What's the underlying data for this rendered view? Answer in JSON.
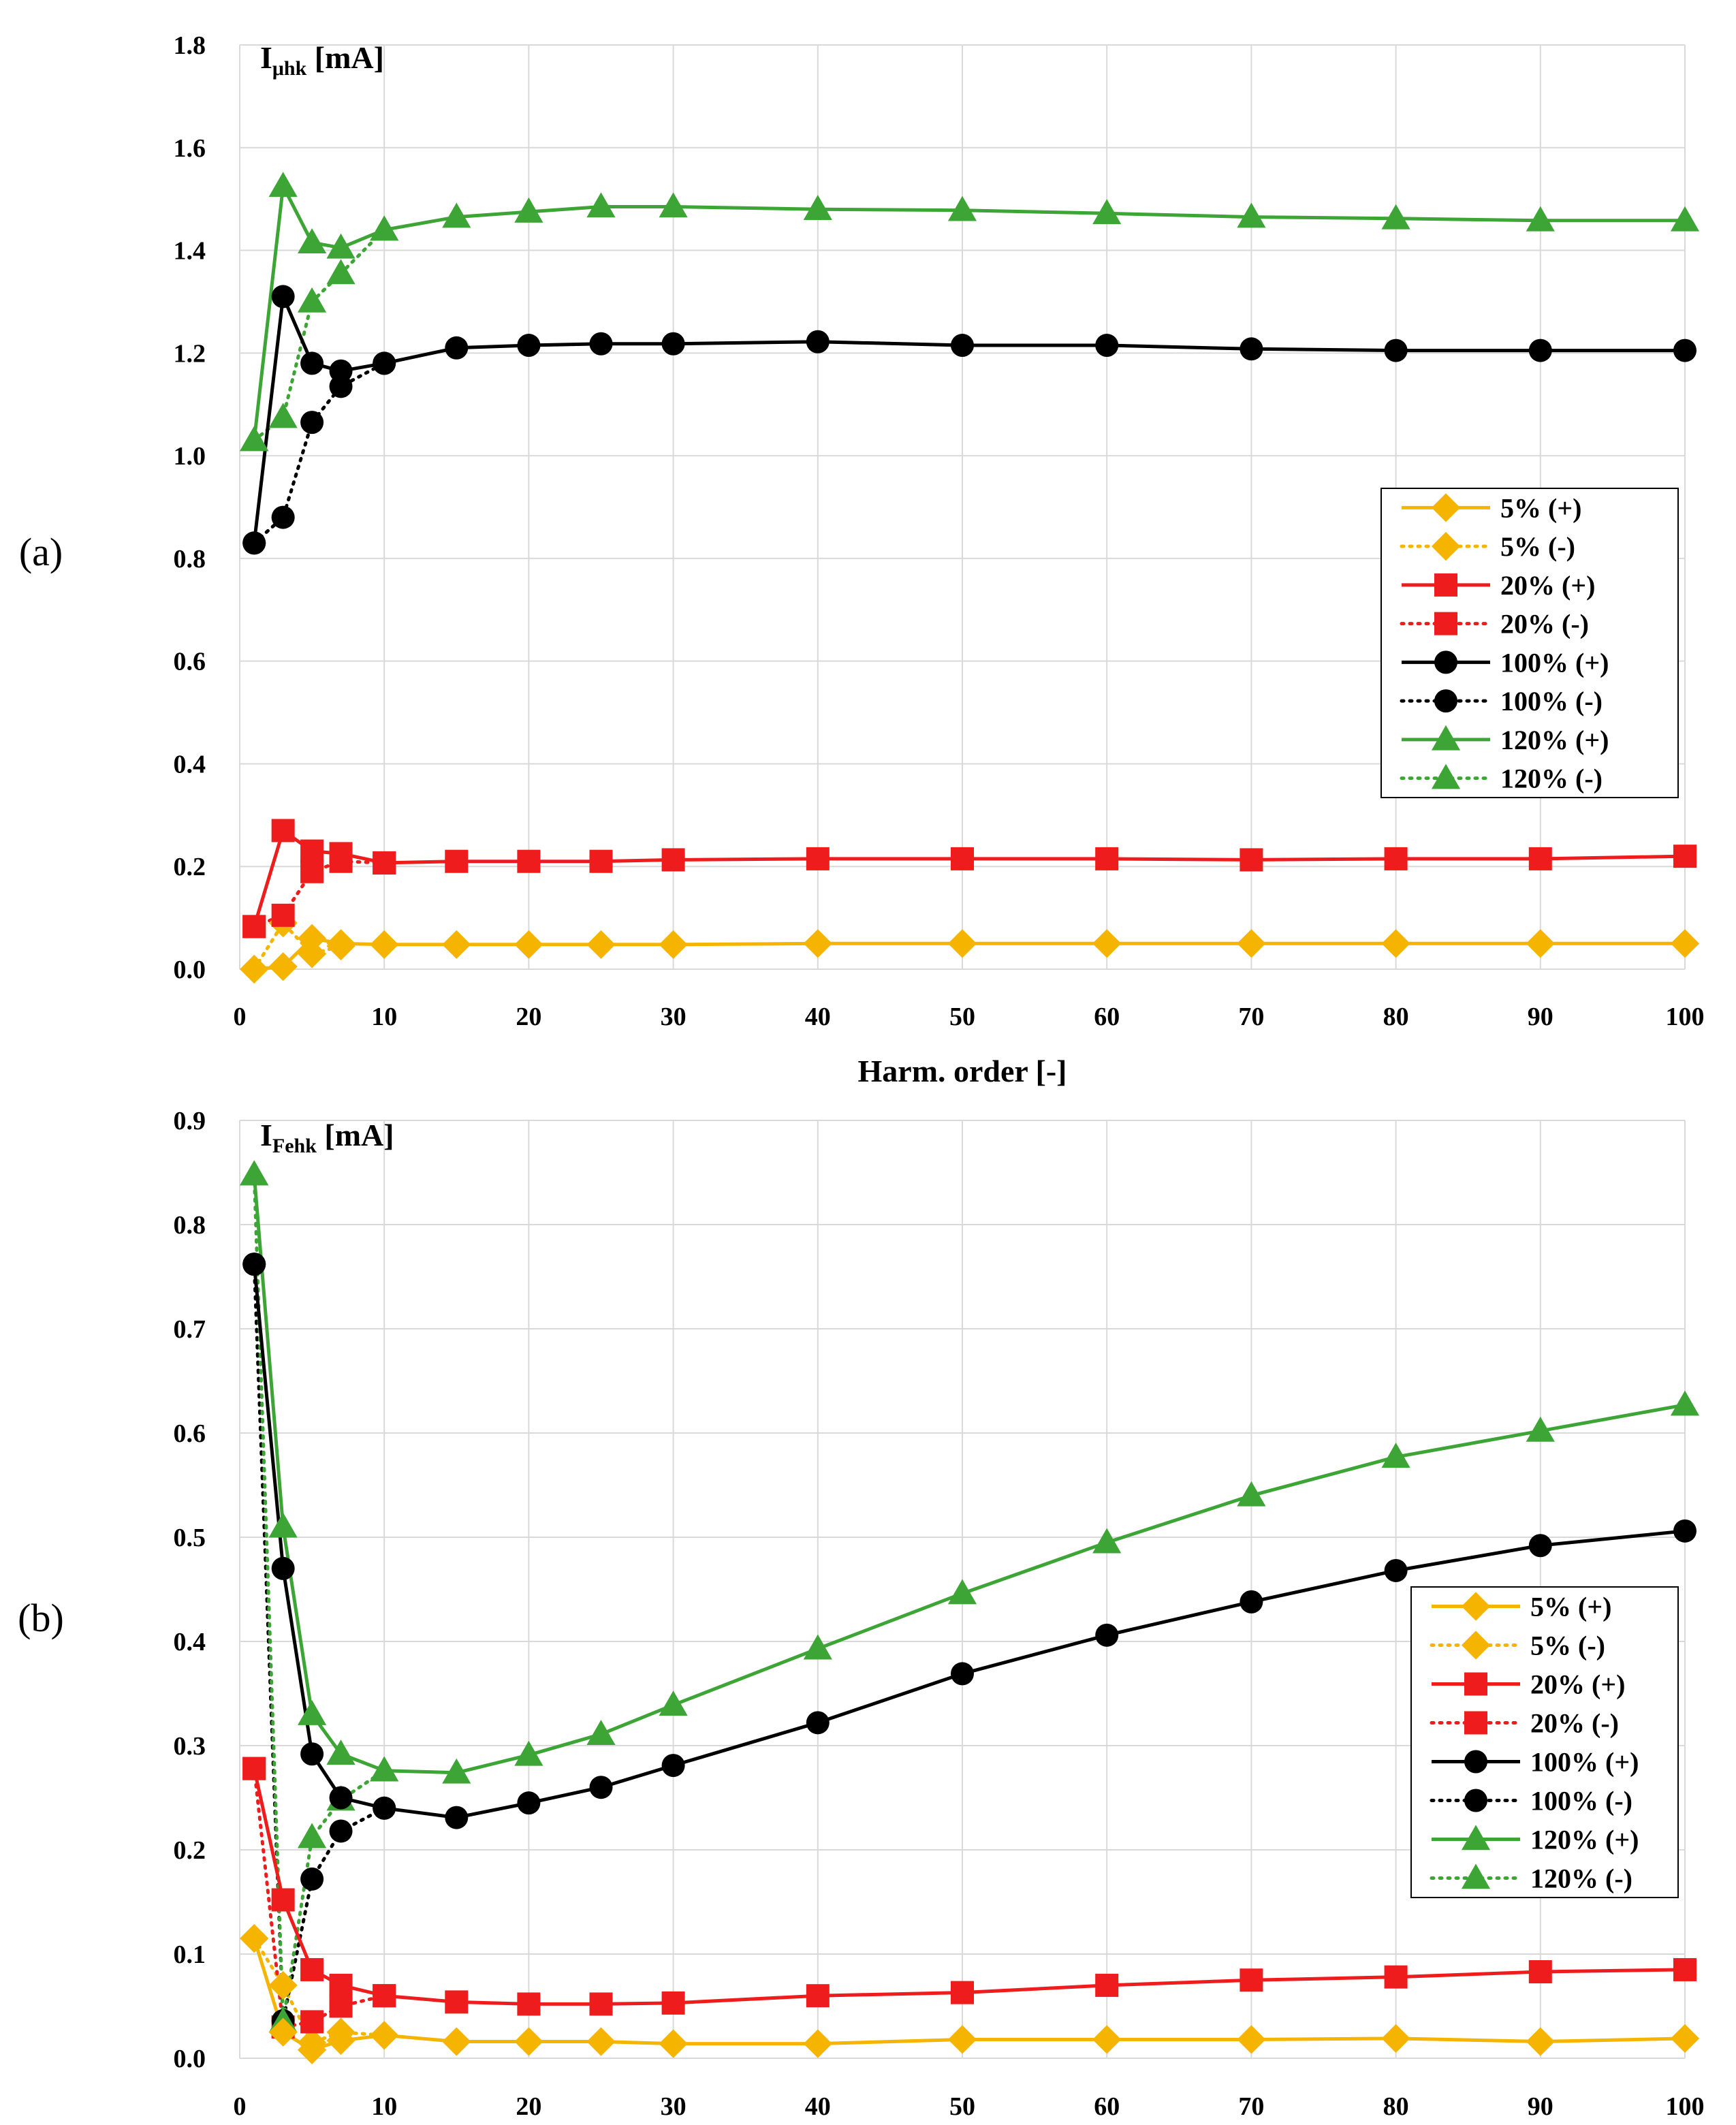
{
  "chart_data": [
    {
      "type": "line",
      "panel_label": "(a)",
      "ylabel_main": "I",
      "ylabel_sub": "μhk",
      "ylabel_unit": " [mA]",
      "xlabel": "Harm. order [-]",
      "xlim": [
        0,
        100
      ],
      "ylim": [
        0,
        1.8
      ],
      "xticks": [
        0,
        10,
        20,
        30,
        40,
        50,
        60,
        70,
        80,
        90,
        100
      ],
      "yticks": [
        0.0,
        0.2,
        0.4,
        0.6,
        0.8,
        1.0,
        1.2,
        1.4,
        1.6,
        1.8
      ],
      "ytick_labels": [
        "0.0",
        "0.2",
        "0.4",
        "0.6",
        "0.8",
        "1.0",
        "1.2",
        "1.4",
        "1.6",
        "1.8"
      ],
      "grid": true,
      "legend_position": "right",
      "series": [
        {
          "name": "5% (+)",
          "color": "#f4b400",
          "dash": "solid",
          "marker": "diamond",
          "x": [
            1,
            3,
            5,
            7,
            10,
            15,
            20,
            25,
            30,
            40,
            50,
            60,
            70,
            80,
            90,
            100
          ],
          "y": [
            0.0,
            0.005,
            0.06,
            0.05,
            0.048,
            0.048,
            0.048,
            0.048,
            0.048,
            0.05,
            0.05,
            0.05,
            0.05,
            0.05,
            0.05,
            0.05
          ]
        },
        {
          "name": "5% (-)",
          "color": "#f4b400",
          "dash": "dotted",
          "marker": "diamond",
          "x": [
            1,
            3,
            5,
            7
          ],
          "y": [
            0.0,
            0.09,
            0.03,
            0.045
          ]
        },
        {
          "name": "20% (+)",
          "color": "#ee1c1c",
          "dash": "solid",
          "marker": "square",
          "x": [
            1,
            3,
            5,
            7,
            10,
            15,
            20,
            25,
            30,
            40,
            50,
            60,
            70,
            80,
            90,
            100
          ],
          "y": [
            0.083,
            0.27,
            0.23,
            0.225,
            0.207,
            0.21,
            0.21,
            0.21,
            0.213,
            0.215,
            0.215,
            0.215,
            0.213,
            0.215,
            0.215,
            0.22
          ]
        },
        {
          "name": "20% (-)",
          "color": "#ee1c1c",
          "dash": "dotted",
          "marker": "square",
          "x": [
            1,
            3,
            5,
            7,
            10
          ],
          "y": [
            0.083,
            0.105,
            0.19,
            0.21,
            0.207
          ]
        },
        {
          "name": "100% (+)",
          "color": "#000000",
          "dash": "solid",
          "marker": "circle",
          "x": [
            1,
            3,
            5,
            7,
            10,
            15,
            20,
            25,
            30,
            40,
            50,
            60,
            70,
            80,
            90,
            100
          ],
          "y": [
            0.83,
            1.31,
            1.18,
            1.165,
            1.18,
            1.21,
            1.215,
            1.218,
            1.218,
            1.222,
            1.215,
            1.215,
            1.208,
            1.205,
            1.205,
            1.205
          ]
        },
        {
          "name": "100% (-)",
          "color": "#000000",
          "dash": "dotted",
          "marker": "circle",
          "x": [
            1,
            3,
            5,
            7,
            10
          ],
          "y": [
            0.83,
            0.88,
            1.065,
            1.135,
            1.18
          ]
        },
        {
          "name": "120% (+)",
          "color": "#3da535",
          "dash": "solid",
          "marker": "triangle",
          "x": [
            1,
            3,
            5,
            7,
            10,
            15,
            20,
            25,
            30,
            40,
            50,
            60,
            70,
            80,
            90,
            100
          ],
          "y": [
            1.03,
            1.525,
            1.415,
            1.405,
            1.44,
            1.465,
            1.475,
            1.485,
            1.485,
            1.48,
            1.478,
            1.472,
            1.465,
            1.462,
            1.458,
            1.458
          ]
        },
        {
          "name": "120% (-)",
          "color": "#3da535",
          "dash": "dotted",
          "marker": "triangle",
          "x": [
            1,
            3,
            5,
            7,
            10
          ],
          "y": [
            1.03,
            1.075,
            1.3,
            1.355,
            1.44
          ]
        }
      ]
    },
    {
      "type": "line",
      "panel_label": "(b)",
      "ylabel_main": "I",
      "ylabel_sub": "Fehk",
      "ylabel_unit": " [mA]",
      "xlabel": "",
      "xlim": [
        0,
        100
      ],
      "ylim": [
        0,
        0.9
      ],
      "xticks": [
        0,
        10,
        20,
        30,
        40,
        50,
        60,
        70,
        80,
        90,
        100
      ],
      "yticks": [
        0.0,
        0.1,
        0.2,
        0.3,
        0.4,
        0.5,
        0.6,
        0.7,
        0.8,
        0.9
      ],
      "ytick_labels": [
        "0.0",
        "0.1",
        "0.2",
        "0.3",
        "0.4",
        "0.5",
        "0.6",
        "0.7",
        "0.8",
        "0.9"
      ],
      "grid": true,
      "legend_position": "right",
      "series": [
        {
          "name": "5% (+)",
          "color": "#f4b400",
          "dash": "solid",
          "marker": "diamond",
          "x": [
            1,
            3,
            5,
            7,
            10,
            15,
            20,
            25,
            30,
            40,
            50,
            60,
            70,
            80,
            90,
            100
          ],
          "y": [
            0.115,
            0.025,
            0.008,
            0.017,
            0.022,
            0.016,
            0.016,
            0.016,
            0.014,
            0.014,
            0.018,
            0.018,
            0.018,
            0.019,
            0.016,
            0.019
          ]
        },
        {
          "name": "5% (-)",
          "color": "#f4b400",
          "dash": "dotted",
          "marker": "diamond",
          "x": [
            1,
            3,
            5,
            7,
            10
          ],
          "y": [
            0.115,
            0.07,
            0.015,
            0.025,
            0.022
          ]
        },
        {
          "name": "20% (+)",
          "color": "#ee1c1c",
          "dash": "solid",
          "marker": "square",
          "x": [
            1,
            3,
            5,
            7,
            10,
            15,
            20,
            25,
            30,
            40,
            50,
            60,
            70,
            80,
            90,
            100
          ],
          "y": [
            0.278,
            0.152,
            0.085,
            0.07,
            0.06,
            0.054,
            0.052,
            0.052,
            0.053,
            0.06,
            0.063,
            0.07,
            0.075,
            0.078,
            0.083,
            0.085
          ]
        },
        {
          "name": "20% (-)",
          "color": "#ee1c1c",
          "dash": "dotted",
          "marker": "square",
          "x": [
            1,
            3,
            5,
            7,
            10
          ],
          "y": [
            0.278,
            0.03,
            0.035,
            0.05,
            0.06
          ]
        },
        {
          "name": "100% (+)",
          "color": "#000000",
          "dash": "solid",
          "marker": "circle",
          "x": [
            1,
            3,
            5,
            7,
            10,
            15,
            20,
            25,
            30,
            40,
            50,
            60,
            70,
            80,
            90,
            100
          ],
          "y": [
            0.762,
            0.47,
            0.292,
            0.25,
            0.24,
            0.231,
            0.245,
            0.26,
            0.281,
            0.322,
            0.369,
            0.406,
            0.438,
            0.468,
            0.492,
            0.506
          ]
        },
        {
          "name": "100% (-)",
          "color": "#000000",
          "dash": "dotted",
          "marker": "circle",
          "x": [
            1,
            3,
            5,
            7,
            10
          ],
          "y": [
            0.762,
            0.036,
            0.172,
            0.218,
            0.24
          ]
        },
        {
          "name": "120% (+)",
          "color": "#3da535",
          "dash": "solid",
          "marker": "triangle",
          "x": [
            1,
            3,
            5,
            7,
            10,
            15,
            20,
            25,
            30,
            40,
            50,
            60,
            70,
            80,
            90,
            100
          ],
          "y": [
            0.848,
            0.51,
            0.33,
            0.292,
            0.276,
            0.274,
            0.291,
            0.311,
            0.339,
            0.393,
            0.446,
            0.495,
            0.54,
            0.577,
            0.602,
            0.627
          ]
        },
        {
          "name": "120% (-)",
          "color": "#3da535",
          "dash": "dotted",
          "marker": "triangle",
          "x": [
            1,
            3,
            5,
            7,
            10
          ],
          "y": [
            0.848,
            0.035,
            0.212,
            0.248,
            0.276
          ]
        }
      ]
    }
  ]
}
